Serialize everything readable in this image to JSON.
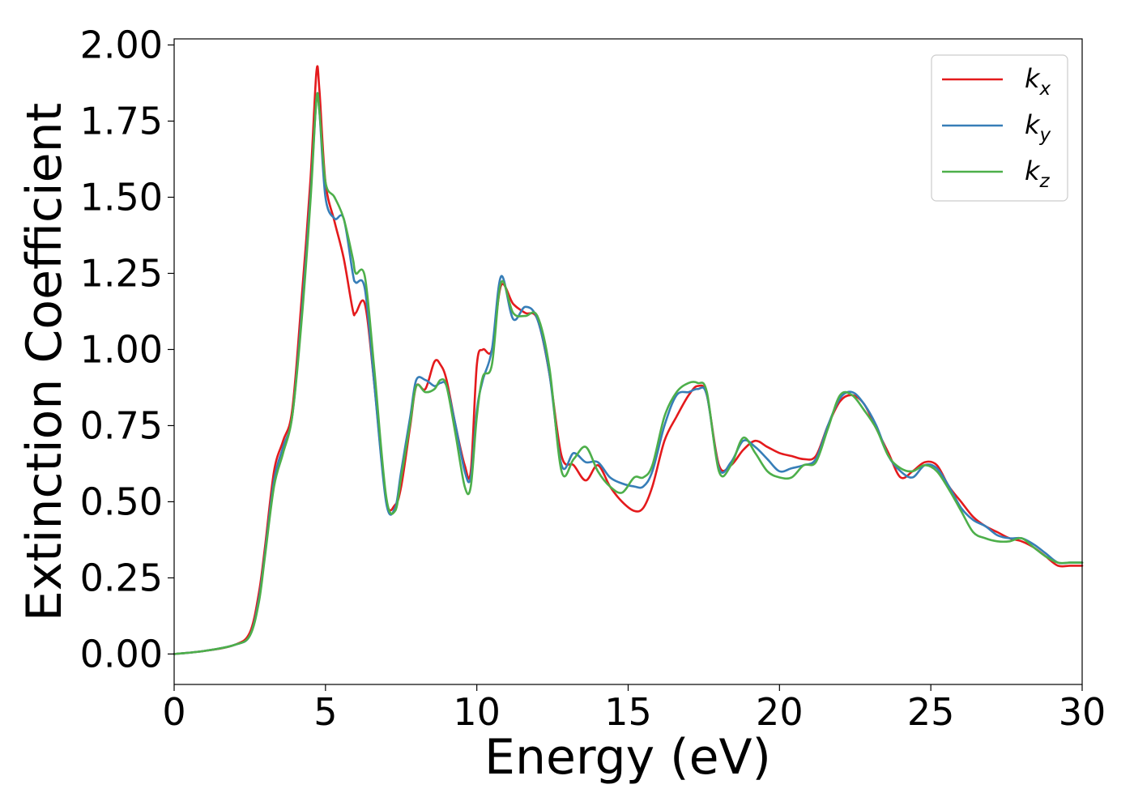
{
  "chart_data": {
    "type": "line",
    "title": "",
    "xlabel": "Energy (eV)",
    "ylabel": "Extinction Coefficient",
    "xlim": [
      0,
      30
    ],
    "ylim": [
      -0.1,
      2.02
    ],
    "xticks": [
      "0",
      "5",
      "10",
      "15",
      "20",
      "25",
      "30"
    ],
    "yticks": [
      "0.00",
      "0.25",
      "0.50",
      "0.75",
      "1.00",
      "1.25",
      "1.50",
      "1.75",
      "2.00"
    ],
    "grid": false,
    "legend_position": "top-right",
    "series": [
      {
        "name": "k_x",
        "label_main": "k",
        "label_sub": "x",
        "color": "#e41a1c",
        "x": [
          0,
          1,
          2,
          2.5,
          2.8,
          3.0,
          3.3,
          3.6,
          3.9,
          4.2,
          4.5,
          4.7,
          4.8,
          5.0,
          5.3,
          5.6,
          5.9,
          6.0,
          6.3,
          6.6,
          7.0,
          7.3,
          7.5,
          7.8,
          8.0,
          8.3,
          8.6,
          8.8,
          9.0,
          9.3,
          9.6,
          9.8,
          10.0,
          10.2,
          10.5,
          10.8,
          11.2,
          11.6,
          12.0,
          12.4,
          12.8,
          13.2,
          13.6,
          14.0,
          14.4,
          14.8,
          15.2,
          15.5,
          15.8,
          16.2,
          16.6,
          17.0,
          17.3,
          17.6,
          18.0,
          18.4,
          18.8,
          19.2,
          19.6,
          20.0,
          20.4,
          20.8,
          21.2,
          21.6,
          22.0,
          22.4,
          22.8,
          23.2,
          23.6,
          24.0,
          24.4,
          24.8,
          25.2,
          25.6,
          26.0,
          26.4,
          26.8,
          27.2,
          27.6,
          28.0,
          28.4,
          28.8,
          29.2,
          29.6,
          30.0
        ],
        "y": [
          0.0,
          0.01,
          0.03,
          0.07,
          0.2,
          0.35,
          0.6,
          0.7,
          0.8,
          1.15,
          1.55,
          1.91,
          1.85,
          1.55,
          1.42,
          1.3,
          1.13,
          1.12,
          1.15,
          0.9,
          0.51,
          0.49,
          0.55,
          0.75,
          0.88,
          0.87,
          0.96,
          0.95,
          0.9,
          0.75,
          0.62,
          0.6,
          0.95,
          1.0,
          1.0,
          1.21,
          1.15,
          1.12,
          1.1,
          0.92,
          0.65,
          0.62,
          0.57,
          0.62,
          0.55,
          0.5,
          0.47,
          0.48,
          0.55,
          0.7,
          0.78,
          0.85,
          0.88,
          0.85,
          0.62,
          0.62,
          0.67,
          0.7,
          0.68,
          0.66,
          0.65,
          0.64,
          0.65,
          0.75,
          0.83,
          0.85,
          0.82,
          0.74,
          0.66,
          0.58,
          0.6,
          0.63,
          0.62,
          0.55,
          0.5,
          0.45,
          0.42,
          0.4,
          0.38,
          0.37,
          0.35,
          0.32,
          0.29,
          0.29,
          0.29
        ]
      },
      {
        "name": "k_y",
        "label_main": "k",
        "label_sub": "y",
        "color": "#377eb8",
        "x": [
          0,
          1,
          2,
          2.5,
          2.8,
          3.0,
          3.3,
          3.6,
          3.9,
          4.2,
          4.5,
          4.7,
          4.8,
          5.0,
          5.3,
          5.6,
          5.9,
          6.0,
          6.3,
          6.6,
          7.0,
          7.3,
          7.5,
          7.8,
          8.0,
          8.3,
          8.6,
          8.8,
          9.0,
          9.3,
          9.6,
          9.8,
          10.0,
          10.2,
          10.5,
          10.8,
          11.2,
          11.6,
          12.0,
          12.4,
          12.8,
          13.2,
          13.6,
          14.0,
          14.4,
          14.8,
          15.2,
          15.5,
          15.8,
          16.2,
          16.6,
          17.0,
          17.3,
          17.6,
          18.0,
          18.4,
          18.8,
          19.2,
          19.6,
          20.0,
          20.4,
          20.8,
          21.2,
          21.6,
          22.0,
          22.4,
          22.8,
          23.2,
          23.6,
          24.0,
          24.4,
          24.8,
          25.2,
          25.6,
          26.0,
          26.4,
          26.8,
          27.2,
          27.6,
          28.0,
          28.4,
          28.8,
          29.2,
          29.6,
          30.0
        ],
        "y": [
          0.0,
          0.01,
          0.03,
          0.06,
          0.18,
          0.33,
          0.57,
          0.68,
          0.78,
          1.1,
          1.5,
          1.82,
          1.78,
          1.5,
          1.43,
          1.43,
          1.25,
          1.22,
          1.2,
          0.9,
          0.5,
          0.48,
          0.6,
          0.78,
          0.9,
          0.9,
          0.88,
          0.89,
          0.88,
          0.75,
          0.6,
          0.58,
          0.8,
          0.9,
          1.0,
          1.24,
          1.1,
          1.14,
          1.1,
          0.92,
          0.62,
          0.66,
          0.63,
          0.63,
          0.58,
          0.56,
          0.55,
          0.55,
          0.6,
          0.75,
          0.85,
          0.86,
          0.87,
          0.85,
          0.61,
          0.63,
          0.7,
          0.68,
          0.64,
          0.6,
          0.61,
          0.62,
          0.64,
          0.75,
          0.84,
          0.86,
          0.82,
          0.75,
          0.65,
          0.6,
          0.58,
          0.62,
          0.61,
          0.55,
          0.48,
          0.44,
          0.42,
          0.39,
          0.38,
          0.38,
          0.36,
          0.33,
          0.3,
          0.3,
          0.3
        ]
      },
      {
        "name": "k_z",
        "label_main": "k",
        "label_sub": "z",
        "color": "#4daf4a",
        "x": [
          0,
          1,
          2,
          2.5,
          2.8,
          3.0,
          3.3,
          3.6,
          3.9,
          4.2,
          4.5,
          4.7,
          4.8,
          5.0,
          5.3,
          5.6,
          5.9,
          6.0,
          6.3,
          6.6,
          7.0,
          7.3,
          7.5,
          7.8,
          8.0,
          8.3,
          8.6,
          8.8,
          9.0,
          9.3,
          9.6,
          9.8,
          10.0,
          10.2,
          10.5,
          10.8,
          11.2,
          11.6,
          12.0,
          12.4,
          12.8,
          13.2,
          13.6,
          14.0,
          14.4,
          14.8,
          15.2,
          15.5,
          15.8,
          16.2,
          16.6,
          17.0,
          17.3,
          17.6,
          18.0,
          18.4,
          18.8,
          19.2,
          19.6,
          20.0,
          20.4,
          20.8,
          21.2,
          21.6,
          22.0,
          22.4,
          22.8,
          23.2,
          23.6,
          24.0,
          24.4,
          24.8,
          25.2,
          25.6,
          26.0,
          26.4,
          26.8,
          27.2,
          27.6,
          28.0,
          28.4,
          28.8,
          29.2,
          29.6,
          30.0
        ],
        "y": [
          0.0,
          0.01,
          0.03,
          0.06,
          0.17,
          0.32,
          0.55,
          0.66,
          0.78,
          1.08,
          1.48,
          1.82,
          1.78,
          1.55,
          1.5,
          1.43,
          1.3,
          1.25,
          1.24,
          0.95,
          0.52,
          0.47,
          0.58,
          0.76,
          0.88,
          0.86,
          0.87,
          0.9,
          0.88,
          0.72,
          0.55,
          0.55,
          0.78,
          0.91,
          0.95,
          1.22,
          1.12,
          1.11,
          1.11,
          0.94,
          0.6,
          0.64,
          0.68,
          0.6,
          0.55,
          0.53,
          0.58,
          0.58,
          0.62,
          0.78,
          0.86,
          0.89,
          0.89,
          0.86,
          0.6,
          0.62,
          0.71,
          0.66,
          0.6,
          0.58,
          0.58,
          0.62,
          0.63,
          0.74,
          0.85,
          0.85,
          0.8,
          0.74,
          0.65,
          0.61,
          0.6,
          0.62,
          0.6,
          0.54,
          0.47,
          0.4,
          0.38,
          0.37,
          0.37,
          0.38,
          0.35,
          0.32,
          0.3,
          0.3,
          0.3
        ]
      }
    ]
  }
}
